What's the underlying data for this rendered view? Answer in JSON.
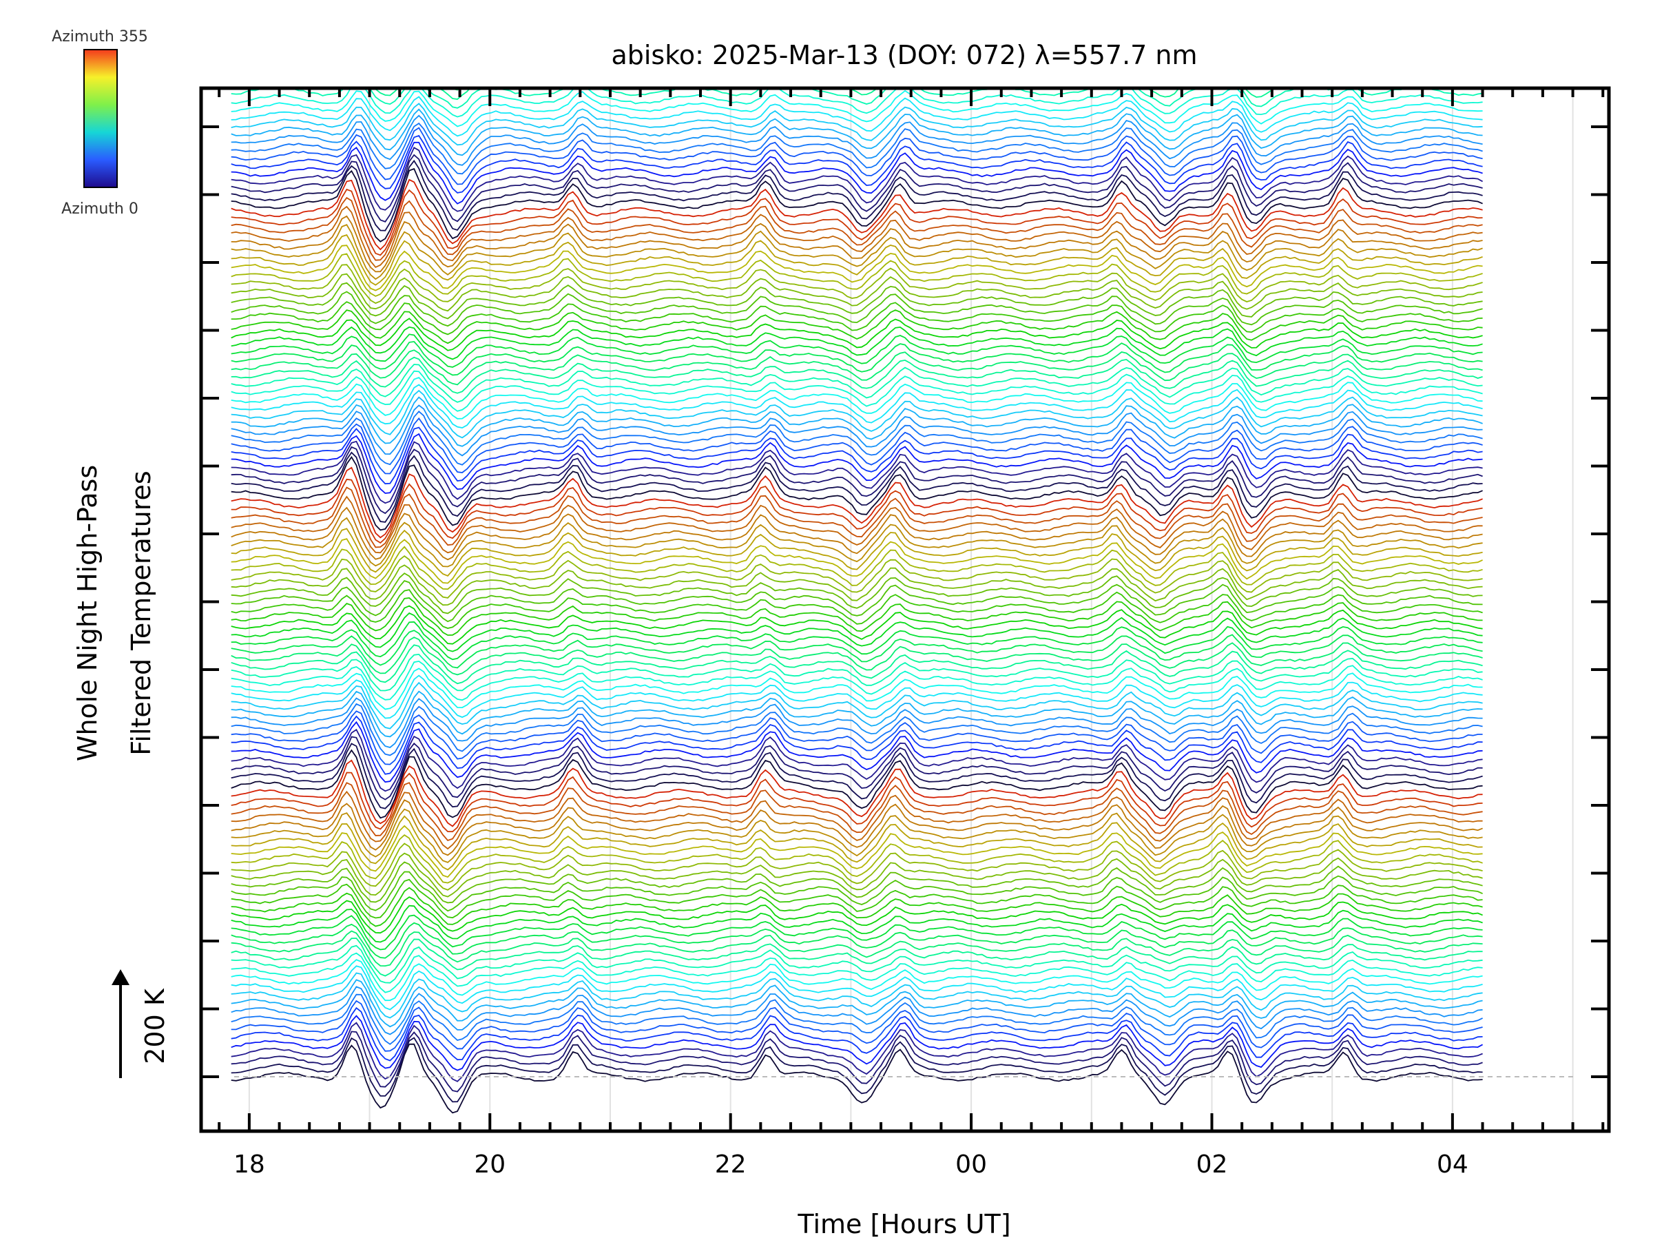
{
  "chart_data": {
    "type": "line",
    "title": "abisko: 2025-Mar-13 (DOY: 072) λ=557.7 nm",
    "xlabel": "Time [Hours UT]",
    "ylabel": [
      "Whole Night High-Pass",
      "Filtered Temperatures"
    ],
    "scale_label": "200 K",
    "x_range_hours": [
      17.6,
      29.3
    ],
    "x_data_range_hours": [
      17.85,
      28.25
    ],
    "x_ticks": [
      {
        "hour": 18,
        "label": "18"
      },
      {
        "hour": 20,
        "label": "20"
      },
      {
        "hour": 22,
        "label": "22"
      },
      {
        "hour": 24,
        "label": "00"
      },
      {
        "hour": 26,
        "label": "02"
      },
      {
        "hour": 28,
        "label": "04"
      }
    ],
    "grid": "vertical, every 1 hour",
    "colorbar": {
      "top_label": "Azimuth 355",
      "bottom_label": "Azimuth 0",
      "colormap": "rainbow"
    },
    "series_count": 144,
    "azimuth_step_deg": 5,
    "stacked_offset_K_per_series": 25,
    "features": [
      {
        "hour": 18.85,
        "type": "peak"
      },
      {
        "hour": 19.1,
        "type": "trough"
      },
      {
        "hour": 19.35,
        "type": "peak"
      },
      {
        "hour": 19.7,
        "type": "trough"
      },
      {
        "hour": 20.7,
        "type": "peak"
      },
      {
        "hour": 22.3,
        "type": "peak"
      },
      {
        "hour": 23.1,
        "type": "trough"
      },
      {
        "hour": 23.4,
        "type": "peak"
      },
      {
        "hour": 25.25,
        "type": "peak"
      },
      {
        "hour": 25.6,
        "type": "trough"
      },
      {
        "hour": 26.15,
        "type": "peak"
      },
      {
        "hour": 26.35,
        "type": "trough"
      },
      {
        "hour": 27.1,
        "type": "peak"
      }
    ]
  }
}
